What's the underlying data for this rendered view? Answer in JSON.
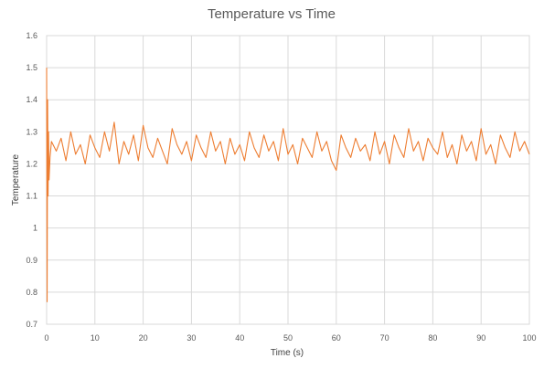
{
  "chart_data": {
    "type": "line",
    "title": "Temperature vs Time",
    "xlabel": "Time (s)",
    "ylabel": "Temperature",
    "xlim": [
      0,
      100
    ],
    "ylim": [
      0.7,
      1.6
    ],
    "x_ticks": [
      0,
      10,
      20,
      30,
      40,
      50,
      60,
      70,
      80,
      90,
      100
    ],
    "y_ticks": [
      0.7,
      0.8,
      0.9,
      1,
      1.1,
      1.2,
      1.3,
      1.4,
      1.5,
      1.6
    ],
    "x_tick_labels": [
      "0",
      "10",
      "20",
      "30",
      "40",
      "50",
      "60",
      "70",
      "80",
      "90",
      "100"
    ],
    "y_tick_labels": [
      "0.7",
      "0.8",
      "0.9",
      "1",
      "1.1",
      "1.2",
      "1.3",
      "1.4",
      "1.5",
      "1.6"
    ],
    "grid": true,
    "legend": "none",
    "series": [
      {
        "color": "#ed7d31",
        "x": [
          0,
          0.1,
          0.2,
          0.3,
          0.4,
          0.5,
          0.7,
          1,
          2,
          3,
          4,
          5,
          6,
          7,
          8,
          9,
          10,
          11,
          12,
          13,
          14,
          15,
          16,
          17,
          18,
          19,
          20,
          21,
          22,
          23,
          24,
          25,
          26,
          27,
          28,
          29,
          30,
          31,
          32,
          33,
          34,
          35,
          36,
          37,
          38,
          39,
          40,
          41,
          42,
          43,
          44,
          45,
          46,
          47,
          48,
          49,
          50,
          51,
          52,
          53,
          54,
          55,
          56,
          57,
          58,
          59,
          60,
          61,
          62,
          63,
          64,
          65,
          66,
          67,
          68,
          69,
          70,
          71,
          72,
          73,
          74,
          75,
          76,
          77,
          78,
          79,
          80,
          81,
          82,
          83,
          84,
          85,
          86,
          87,
          88,
          89,
          90,
          91,
          92,
          93,
          94,
          95,
          96,
          97,
          98,
          99,
          100
        ],
        "y": [
          1.5,
          0.77,
          1.4,
          1.1,
          1.3,
          1.15,
          1.22,
          1.27,
          1.24,
          1.28,
          1.21,
          1.3,
          1.23,
          1.26,
          1.2,
          1.29,
          1.25,
          1.22,
          1.3,
          1.24,
          1.33,
          1.2,
          1.27,
          1.23,
          1.29,
          1.21,
          1.32,
          1.25,
          1.22,
          1.28,
          1.24,
          1.2,
          1.31,
          1.26,
          1.23,
          1.27,
          1.21,
          1.29,
          1.25,
          1.22,
          1.3,
          1.24,
          1.27,
          1.2,
          1.28,
          1.23,
          1.26,
          1.21,
          1.3,
          1.25,
          1.22,
          1.29,
          1.24,
          1.27,
          1.21,
          1.31,
          1.23,
          1.26,
          1.2,
          1.28,
          1.25,
          1.22,
          1.3,
          1.24,
          1.27,
          1.21,
          1.18,
          1.29,
          1.25,
          1.22,
          1.28,
          1.24,
          1.26,
          1.21,
          1.3,
          1.23,
          1.27,
          1.2,
          1.29,
          1.25,
          1.22,
          1.31,
          1.24,
          1.27,
          1.21,
          1.28,
          1.25,
          1.23,
          1.3,
          1.22,
          1.26,
          1.2,
          1.29,
          1.24,
          1.27,
          1.21,
          1.31,
          1.23,
          1.26,
          1.2,
          1.29,
          1.25,
          1.22,
          1.3,
          1.24,
          1.27,
          1.23
        ]
      }
    ]
  }
}
